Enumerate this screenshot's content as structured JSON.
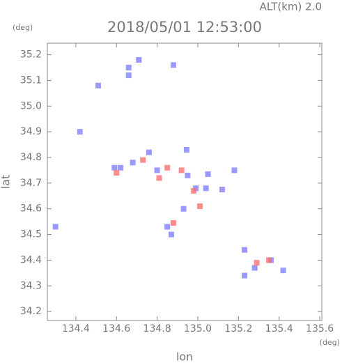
{
  "chart_data": {
    "type": "scatter",
    "title": "2018/05/01 12:53:00",
    "altitude_label": "ALT(km) 2.0",
    "xlabel": "lon",
    "ylabel": "lat",
    "x_unit": "(deg)",
    "y_unit": "(deg)",
    "xlim": [
      134.26,
      135.61
    ],
    "ylim": [
      34.165,
      35.245
    ],
    "xticks": [
      134.4,
      134.6,
      134.8,
      {
        "value": 135,
        "label": "135.0"
      },
      135.2,
      135.4,
      135.6
    ],
    "yticks": [
      34.2,
      34.3,
      34.4,
      34.5,
      34.6,
      34.7,
      34.8,
      34.9,
      {
        "value": 35,
        "label": "35.0"
      },
      35.1,
      35.2
    ],
    "series": [
      {
        "color": "#7f7fff",
        "x": [
          134.3,
          134.66,
          134.66,
          134.71,
          134.88,
          134.62,
          134.59,
          134.76,
          134.8,
          134.87,
          134.85,
          134.95,
          134.99,
          135.04,
          134.945,
          134.93,
          135.12,
          135.18,
          135.23,
          135.28,
          135.36,
          135.42,
          134.42,
          134.51,
          135.23,
          134.68,
          135.05
        ],
        "values": [
          34.53,
          35.15,
          35.12,
          35.18,
          35.16,
          34.76,
          34.76,
          34.82,
          34.75,
          34.5,
          34.53,
          34.73,
          34.68,
          34.68,
          34.83,
          34.6,
          34.675,
          34.75,
          34.34,
          34.37,
          34.4,
          34.36,
          34.9,
          35.08,
          34.44,
          34.78,
          34.735
        ]
      },
      {
        "color": "#ff7070",
        "x": [
          134.73,
          134.85,
          134.92,
          134.98,
          135.01,
          134.88,
          135.29,
          135.35,
          134.81,
          134.6
        ],
        "values": [
          34.79,
          34.76,
          34.75,
          34.67,
          34.61,
          34.545,
          34.39,
          34.4,
          34.72,
          34.74
        ]
      }
    ]
  }
}
